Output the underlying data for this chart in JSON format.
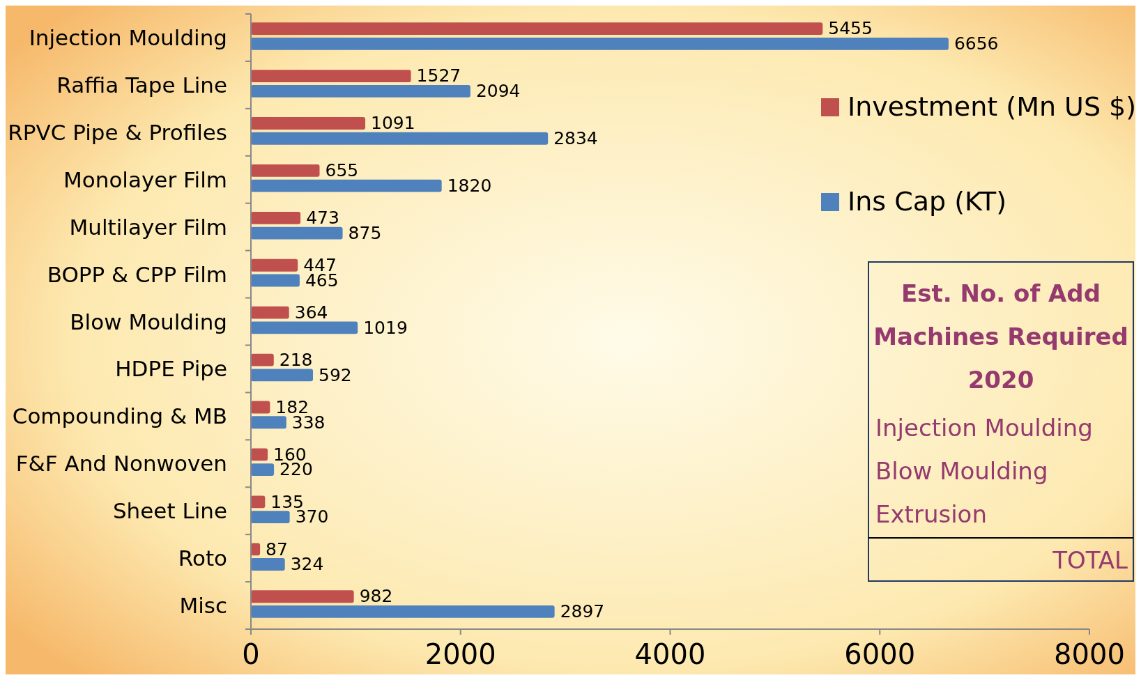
{
  "chart_data": {
    "type": "bar",
    "orientation": "horizontal",
    "categories": [
      "Injection Moulding",
      "Raffia Tape Line",
      "RPVC Pipe & Profiles",
      "Monolayer Film",
      "Multilayer Film",
      "BOPP & CPP Film",
      "Blow Moulding",
      "HDPE Pipe",
      "Compounding & MB",
      "F&F And Nonwoven",
      "Sheet Line",
      "Roto",
      "Misc"
    ],
    "series": [
      {
        "name": "Investment (Mn US $)",
        "color": "#c0504d",
        "values": [
          5455,
          1527,
          1091,
          655,
          473,
          447,
          364,
          218,
          182,
          160,
          135,
          87,
          982
        ]
      },
      {
        "name": "Ins Cap (KT)",
        "color": "#4f81bd",
        "values": [
          6656,
          2094,
          2834,
          1820,
          875,
          465,
          1019,
          592,
          338,
          220,
          370,
          324,
          2897
        ]
      }
    ],
    "xlim": [
      0,
      8000
    ],
    "xticks": [
      0,
      2000,
      4000,
      6000,
      8000
    ],
    "data_labels": true,
    "legend": "top right",
    "grid": false,
    "annotations": [
      "Est. No. of Add",
      "Machines Required",
      "2020",
      "Injection Moulding",
      "Blow Moulding",
      "Extrusion",
      "TOTAL"
    ]
  }
}
